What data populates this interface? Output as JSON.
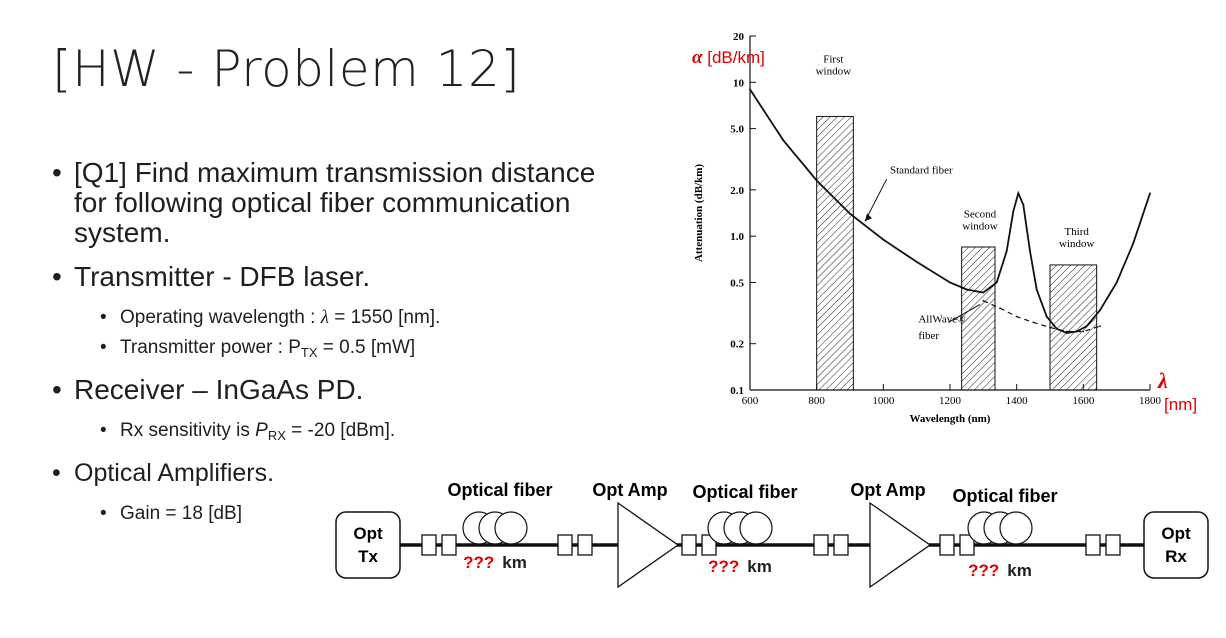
{
  "slide": {
    "title": "[HW - Problem 12]",
    "q1": "[Q1] Find maximum transmission distance for following optical fiber communication system.",
    "tx_heading": "Transmitter - DFB laser.",
    "tx_wavelength_label": "Operating wavelength : ",
    "tx_wavelength_symbol": "λ",
    "tx_wavelength_value": " = 1550 [nm].",
    "tx_power_label": "Transmitter power : P",
    "tx_power_sub": "TX",
    "tx_power_value": " = 0.5 [mW]",
    "rx_heading": "Receiver – InGaAs PD.",
    "rx_sens_label": "Rx sensitivity is ",
    "rx_sens_symbol": "P",
    "rx_sens_sub": "RX",
    "rx_sens_value": " = -20 [dBm].",
    "amp_heading": "Optical Amplifiers.",
    "amp_gain": "Gain = 18 [dB]"
  },
  "chart_data": {
    "type": "line",
    "xlabel": "Wavelength (nm)",
    "ylabel": "Attenuation (dB/km)",
    "y_scale": "log",
    "xlim": [
      600,
      1800
    ],
    "ylim": [
      0.1,
      20
    ],
    "x_ticks": [
      "600",
      "800",
      "1000",
      "1200",
      "1400",
      "1600",
      "1800"
    ],
    "y_ticks": [
      "0.1",
      "0.2",
      "0.5",
      "1.0",
      "2.0",
      "5.0",
      "10",
      "20"
    ],
    "overlay_y_label": "α [dB/km]",
    "overlay_x_label_symbol": "λ",
    "overlay_x_label_unit": "[nm]",
    "accent_color": "#e00000",
    "windows": [
      {
        "label_line1": "First",
        "label_line2": "window",
        "x_start": 800,
        "x_end": 910,
        "top": 6.0
      },
      {
        "label_line1": "Second",
        "label_line2": "window",
        "x_start": 1235,
        "x_end": 1335,
        "top": 0.85
      },
      {
        "label_line1": "Third",
        "label_line2": "window",
        "x_start": 1500,
        "x_end": 1640,
        "top": 0.65
      }
    ],
    "series": [
      {
        "name": "Standard fiber",
        "x": [
          600,
          700,
          800,
          900,
          1000,
          1100,
          1200,
          1250,
          1300,
          1340,
          1370,
          1390,
          1405,
          1420,
          1440,
          1460,
          1490,
          1520,
          1550,
          1580,
          1610,
          1650,
          1700,
          1750,
          1800
        ],
        "y": [
          9.0,
          4.2,
          2.3,
          1.4,
          0.95,
          0.68,
          0.5,
          0.45,
          0.43,
          0.5,
          0.8,
          1.45,
          1.9,
          1.6,
          0.8,
          0.45,
          0.3,
          0.25,
          0.235,
          0.24,
          0.26,
          0.33,
          0.5,
          0.9,
          1.9
        ]
      },
      {
        "name": "AllWave® fiber",
        "x": [
          1300,
          1350,
          1400,
          1450,
          1500,
          1550,
          1600,
          1650
        ],
        "y": [
          0.38,
          0.34,
          0.3,
          0.275,
          0.255,
          0.24,
          0.24,
          0.26
        ]
      }
    ],
    "annotations": [
      "Standard fiber",
      "AllWave® fiber"
    ]
  },
  "diagram": {
    "tx_label_1": "Opt",
    "tx_label_2": "Tx",
    "rx_label_1": "Opt",
    "rx_label_2": "Rx",
    "fiber_label": "Optical fiber",
    "amp_label": "Opt Amp",
    "distance_unknown": "???",
    "distance_unit": "km",
    "accent_color": "#e00000"
  }
}
